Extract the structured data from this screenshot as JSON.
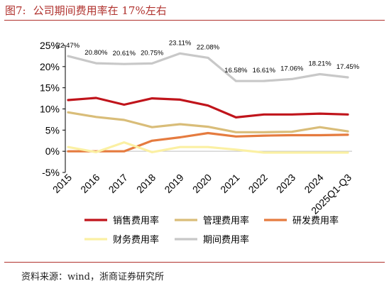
{
  "figure": {
    "number": "图7:",
    "caption": "公司期间费用率在 17%左右",
    "source": "资料来源：wind，浙商证券研究所"
  },
  "colors": {
    "sales": "#c0141b",
    "mgmt": "#d9bd79",
    "rd": "#e57b3f",
    "fin": "#fbf0a3",
    "total": "#c8c8c8",
    "accent": "#b0312d"
  },
  "chart_data": {
    "type": "line",
    "categories": [
      "2015",
      "2016",
      "2017",
      "2018",
      "2019",
      "2020",
      "2021",
      "2022",
      "2023",
      "2024",
      "2025Q1-Q3"
    ],
    "ylim": [
      -5,
      25
    ],
    "yticks": [
      "-5%",
      "0%",
      "5%",
      "10%",
      "15%",
      "20%",
      "25%"
    ],
    "ytick_values": [
      -5,
      0,
      5,
      10,
      15,
      20,
      25
    ],
    "legend_position": "bottom",
    "series": [
      {
        "name": "销售费用率",
        "color_key": "sales",
        "values": [
          12.1,
          12.6,
          11.0,
          12.5,
          12.2,
          10.8,
          8.0,
          8.7,
          8.7,
          8.9,
          8.7
        ]
      },
      {
        "name": "管理费用率",
        "color_key": "mgmt",
        "values": [
          9.2,
          8.1,
          7.4,
          5.7,
          6.4,
          5.8,
          4.5,
          4.5,
          4.6,
          5.7,
          4.7
        ]
      },
      {
        "name": "研发费用率",
        "color_key": "rd",
        "values": [
          0.0,
          0.0,
          0.0,
          2.5,
          3.3,
          4.3,
          3.5,
          3.7,
          3.8,
          3.8,
          3.9
        ]
      },
      {
        "name": "财务费用率",
        "color_key": "fin",
        "values": [
          1.0,
          -0.2,
          2.1,
          -0.2,
          1.0,
          1.0,
          0.4,
          -0.3,
          -0.3,
          -0.3,
          -0.3
        ]
      },
      {
        "name": "期间费用率",
        "color_key": "total",
        "values": [
          22.47,
          20.8,
          20.61,
          20.75,
          23.11,
          22.08,
          16.58,
          16.61,
          17.06,
          18.21,
          17.45
        ],
        "labels": [
          "22.47%",
          "20.80%",
          "20.61%",
          "20.75%",
          "23.11%",
          "22.08%",
          "16.58%",
          "16.61%",
          "17.06%",
          "18.21%",
          "17.45%"
        ]
      }
    ]
  }
}
